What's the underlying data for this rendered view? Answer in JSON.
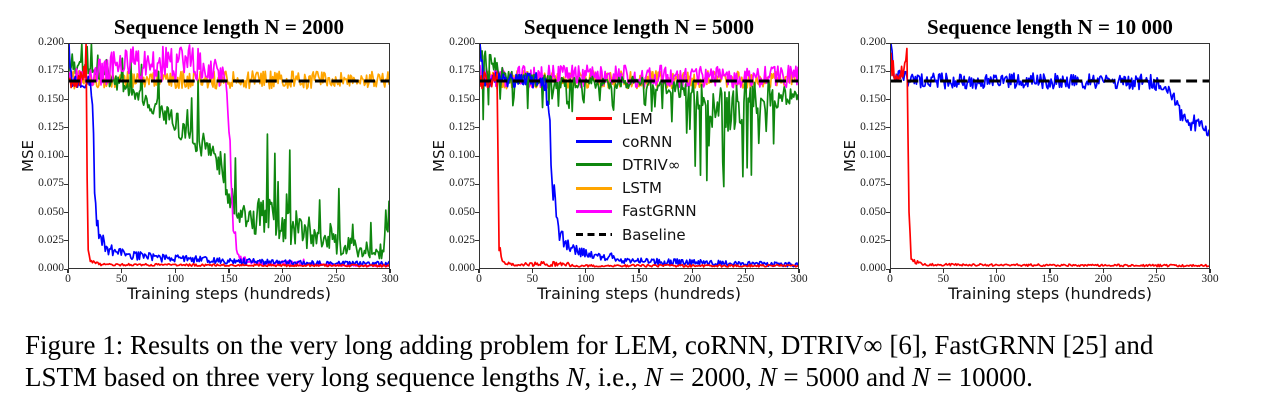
{
  "figure": {
    "caption": {
      "line1": "Figure 1: Results on the very long adding problem for LEM, coRNN, DTRIV∞ [6], FastGRNN [25] and",
      "line2_segments": [
        {
          "t": "LSTM based on three very long sequence lengths ",
          "i": false
        },
        {
          "t": "N",
          "i": true
        },
        {
          "t": ", i.e., ",
          "i": false
        },
        {
          "t": "N",
          "i": true
        },
        {
          "t": " = 2000, ",
          "i": false
        },
        {
          "t": "N",
          "i": true
        },
        {
          "t": " = 5000 and ",
          "i": false
        },
        {
          "t": "N",
          "i": true
        },
        {
          "t": " = 10000.",
          "i": false
        }
      ]
    }
  },
  "chart_data": [
    {
      "type": "line",
      "title": "Sequence length N = 2000",
      "xlabel": "Training steps (hundreds)",
      "ylabel": "MSE",
      "xlim": [
        0,
        300
      ],
      "ylim": [
        0.0,
        0.2
      ],
      "xticks": [
        0,
        50,
        100,
        150,
        200,
        250,
        300
      ],
      "ytick_labels": [
        "0.000",
        "0.025",
        "0.050",
        "0.075",
        "0.100",
        "0.125",
        "0.150",
        "0.175",
        "0.200"
      ],
      "baseline": {
        "label": "Baseline",
        "value": 0.167,
        "color": "#000000"
      },
      "series": [
        {
          "name": "LSTM",
          "color": "#ffa500",
          "style": "noisy",
          "seed": 44,
          "trend": [
            [
              0,
              0.168,
              0.008
            ],
            [
              300,
              0.168,
              0.008
            ]
          ]
        },
        {
          "name": "DTRIV∞",
          "color": "#0f870f",
          "style": "spiky-up",
          "seed": 33,
          "trend": [
            [
              0,
              0.185,
              0.02
            ],
            [
              10,
              0.178,
              0.018
            ],
            [
              25,
              0.17,
              0.015
            ],
            [
              45,
              0.165,
              0.015
            ],
            [
              60,
              0.158,
              0.018
            ],
            [
              75,
              0.148,
              0.02
            ],
            [
              90,
              0.138,
              0.022
            ],
            [
              105,
              0.125,
              0.024
            ],
            [
              120,
              0.112,
              0.026
            ],
            [
              132,
              0.105,
              0.028
            ],
            [
              140,
              0.1,
              0.03
            ],
            [
              147,
              0.07,
              0.025
            ],
            [
              153,
              0.052,
              0.022
            ],
            [
              162,
              0.048,
              0.022
            ],
            [
              172,
              0.042,
              0.02
            ],
            [
              180,
              0.045,
              0.05
            ],
            [
              186,
              0.055,
              0.06
            ],
            [
              192,
              0.04,
              0.03
            ],
            [
              200,
              0.035,
              0.03
            ],
            [
              208,
              0.04,
              0.05
            ],
            [
              216,
              0.032,
              0.028
            ],
            [
              225,
              0.028,
              0.025
            ],
            [
              235,
              0.025,
              0.022
            ],
            [
              245,
              0.028,
              0.035
            ],
            [
              255,
              0.02,
              0.02
            ],
            [
              262,
              0.028,
              0.035
            ],
            [
              270,
              0.016,
              0.015
            ],
            [
              280,
              0.013,
              0.012
            ],
            [
              290,
              0.012,
              0.012
            ],
            [
              296,
              0.02,
              0.025
            ],
            [
              300,
              0.045,
              0.015
            ]
          ]
        },
        {
          "name": "FastGRNN",
          "color": "#ff00ff",
          "style": "noisy",
          "seed": 55,
          "trend": [
            [
              0,
              0.17,
              0.009
            ],
            [
              15,
              0.172,
              0.011
            ],
            [
              35,
              0.177,
              0.014
            ],
            [
              55,
              0.183,
              0.016
            ],
            [
              75,
              0.182,
              0.017
            ],
            [
              95,
              0.18,
              0.017
            ],
            [
              110,
              0.184,
              0.017
            ],
            [
              125,
              0.182,
              0.016
            ],
            [
              138,
              0.177,
              0.014
            ],
            [
              146,
              0.168,
              0.008
            ],
            [
              150,
              0.12,
              0.02
            ],
            [
              153,
              0.05,
              0.012
            ],
            [
              157,
              0.018,
              0.005
            ],
            [
              162,
              0.008,
              0.003
            ],
            [
              175,
              0.004,
              0.002
            ],
            [
              220,
              0.005,
              0.003
            ],
            [
              228,
              0.003,
              0.001
            ],
            [
              300,
              0.002,
              0.001
            ]
          ]
        },
        {
          "name": "coRNN",
          "color": "#0000ff",
          "style": "noisy",
          "seed": 22,
          "trend": [
            [
              0,
              0.2,
              0
            ],
            [
              1,
              0.185,
              0.01
            ],
            [
              3,
              0.168,
              0.006
            ],
            [
              20,
              0.166,
              0.006
            ],
            [
              22,
              0.155,
              0.012
            ],
            [
              24,
              0.07,
              0.015
            ],
            [
              26,
              0.04,
              0.01
            ],
            [
              30,
              0.025,
              0.007
            ],
            [
              38,
              0.016,
              0.005
            ],
            [
              55,
              0.012,
              0.004
            ],
            [
              90,
              0.009,
              0.004
            ],
            [
              130,
              0.007,
              0.003
            ],
            [
              180,
              0.005,
              0.003
            ],
            [
              240,
              0.004,
              0.002
            ],
            [
              300,
              0.004,
              0.002
            ]
          ]
        },
        {
          "name": "LEM",
          "color": "#ff0000",
          "style": "noisy",
          "seed": 11,
          "trend": [
            [
              0,
              0.168,
              0.008
            ],
            [
              13,
              0.167,
              0.008
            ],
            [
              15,
              0.18,
              0.01
            ],
            [
              16,
              0.2,
              0
            ],
            [
              17,
              0.08,
              0
            ],
            [
              18,
              0.015,
              0.004
            ],
            [
              20,
              0.006,
              0.002
            ],
            [
              30,
              0.003,
              0.001
            ],
            [
              300,
              0.002,
              0.001
            ]
          ]
        }
      ]
    },
    {
      "type": "line",
      "title": "Sequence length N = 5000",
      "xlabel": "Training steps (hundreds)",
      "ylabel": "MSE",
      "xlim": [
        0,
        300
      ],
      "ylim": [
        0.0,
        0.2
      ],
      "xticks": [
        0,
        50,
        100,
        150,
        200,
        250,
        300
      ],
      "ytick_labels": [
        "0.000",
        "0.025",
        "0.050",
        "0.075",
        "0.100",
        "0.125",
        "0.150",
        "0.175",
        "0.200"
      ],
      "baseline": {
        "label": "Baseline",
        "value": 0.167,
        "color": "#000000"
      },
      "legend": {
        "position": "center",
        "entries": [
          {
            "label": "LEM",
            "color": "#ff0000",
            "dashed": false
          },
          {
            "label": "coRNN",
            "color": "#0000ff",
            "dashed": false
          },
          {
            "label": "DTRIV∞",
            "color": "#0f870f",
            "dashed": false
          },
          {
            "label": "LSTM",
            "color": "#ffa500",
            "dashed": false
          },
          {
            "label": "FastGRNN",
            "color": "#ff00ff",
            "dashed": false
          },
          {
            "label": "Baseline",
            "color": "#000000",
            "dashed": true
          }
        ]
      },
      "series": [
        {
          "name": "LSTM",
          "color": "#ffa500",
          "style": "noisy",
          "seed": 99,
          "trend": [
            [
              0,
              0.168,
              0.008
            ],
            [
              300,
              0.168,
              0.008
            ]
          ]
        },
        {
          "name": "FastGRNN",
          "color": "#ff00ff",
          "style": "noisy",
          "seed": 111,
          "trend": [
            [
              0,
              0.171,
              0.01
            ],
            [
              300,
              0.171,
              0.01
            ]
          ]
        },
        {
          "name": "DTRIV∞",
          "color": "#0f870f",
          "style": "spiky-down",
          "seed": 88,
          "trend": [
            [
              0,
              0.195,
              0.03
            ],
            [
              8,
              0.188,
              0.025
            ],
            [
              18,
              0.176,
              0.018
            ],
            [
              35,
              0.169,
              0.013
            ],
            [
              60,
              0.167,
              0.012
            ],
            [
              90,
              0.166,
              0.012
            ],
            [
              120,
              0.166,
              0.013
            ],
            [
              150,
              0.165,
              0.013
            ],
            [
              175,
              0.163,
              0.015
            ],
            [
              190,
              0.16,
              0.02
            ],
            [
              200,
              0.155,
              0.03
            ],
            [
              210,
              0.148,
              0.04
            ],
            [
              220,
              0.143,
              0.045
            ],
            [
              230,
              0.14,
              0.045
            ],
            [
              238,
              0.142,
              0.045
            ],
            [
              246,
              0.148,
              0.045
            ],
            [
              254,
              0.152,
              0.04
            ],
            [
              262,
              0.15,
              0.04
            ],
            [
              270,
              0.155,
              0.03
            ],
            [
              280,
              0.153,
              0.025
            ],
            [
              290,
              0.154,
              0.018
            ],
            [
              300,
              0.154,
              0.012
            ]
          ]
        },
        {
          "name": "coRNN",
          "color": "#0000ff",
          "style": "noisy",
          "seed": 77,
          "trend": [
            [
              0,
              0.2,
              0
            ],
            [
              1,
              0.185,
              0.008
            ],
            [
              4,
              0.169,
              0.007
            ],
            [
              45,
              0.168,
              0.007
            ],
            [
              58,
              0.166,
              0.008
            ],
            [
              62,
              0.158,
              0.012
            ],
            [
              65,
              0.145,
              0.015
            ],
            [
              67,
              0.11,
              0.02
            ],
            [
              69,
              0.07,
              0.02
            ],
            [
              72,
              0.04,
              0.012
            ],
            [
              76,
              0.028,
              0.009
            ],
            [
              82,
              0.02,
              0.007
            ],
            [
              92,
              0.015,
              0.005
            ],
            [
              105,
              0.011,
              0.004
            ],
            [
              120,
              0.009,
              0.004
            ],
            [
              123,
              0.016,
              0.004
            ],
            [
              126,
              0.008,
              0.003
            ],
            [
              145,
              0.006,
              0.003
            ],
            [
              190,
              0.005,
              0.003
            ],
            [
              250,
              0.004,
              0.002
            ],
            [
              300,
              0.003,
              0.002
            ]
          ]
        },
        {
          "name": "LEM",
          "color": "#ff0000",
          "style": "noisy",
          "seed": 66,
          "trend": [
            [
              0,
              0.168,
              0.008
            ],
            [
              14,
              0.166,
              0.008
            ],
            [
              16,
              0.175,
              0.006
            ],
            [
              17,
              0.1,
              0
            ],
            [
              18,
              0.02,
              0.005
            ],
            [
              21,
              0.006,
              0.002
            ],
            [
              30,
              0.003,
              0.001
            ],
            [
              82,
              0.004,
              0.003
            ],
            [
              86,
              0.002,
              0.001
            ],
            [
              300,
              0.002,
              0.001
            ]
          ]
        }
      ]
    },
    {
      "type": "line",
      "title": "Sequence length N = 10 000",
      "xlabel": "Training steps (hundreds)",
      "ylabel": "MSE",
      "xlim": [
        0,
        300
      ],
      "ylim": [
        0.0,
        0.2
      ],
      "xticks": [
        0,
        50,
        100,
        150,
        200,
        250,
        300
      ],
      "ytick_labels": [
        "0.000",
        "0.025",
        "0.050",
        "0.075",
        "0.100",
        "0.125",
        "0.150",
        "0.175",
        "0.200"
      ],
      "baseline": {
        "label": "Baseline",
        "value": 0.167,
        "color": "#000000"
      },
      "series": [
        {
          "name": "coRNN",
          "color": "#0000ff",
          "style": "noisy",
          "seed": 134,
          "trend": [
            [
              0,
              0.2,
              0
            ],
            [
              1,
              0.19,
              0.006
            ],
            [
              3,
              0.17,
              0.007
            ],
            [
              40,
              0.167,
              0.007
            ],
            [
              120,
              0.167,
              0.007
            ],
            [
              200,
              0.167,
              0.007
            ],
            [
              245,
              0.166,
              0.007
            ],
            [
              258,
              0.164,
              0.006
            ],
            [
              264,
              0.158,
              0.006
            ],
            [
              268,
              0.15,
              0.007
            ],
            [
              272,
              0.141,
              0.009
            ],
            [
              276,
              0.134,
              0.01
            ],
            [
              281,
              0.129,
              0.009
            ],
            [
              286,
              0.131,
              0.008
            ],
            [
              291,
              0.125,
              0.007
            ],
            [
              295,
              0.127,
              0.007
            ],
            [
              298,
              0.119,
              0.004
            ],
            [
              300,
              0.123,
              0.003
            ]
          ]
        },
        {
          "name": "LEM",
          "color": "#ff0000",
          "style": "noisy",
          "seed": 123,
          "trend": [
            [
              0,
              0.183,
              0.015
            ],
            [
              3,
              0.172,
              0.012
            ],
            [
              6,
              0.178,
              0.013
            ],
            [
              9,
              0.168,
              0.01
            ],
            [
              12,
              0.175,
              0.012
            ],
            [
              14,
              0.188,
              0.008
            ],
            [
              15,
              0.196,
              0
            ],
            [
              16,
              0.12,
              0
            ],
            [
              17,
              0.05,
              0
            ],
            [
              19,
              0.01,
              0.003
            ],
            [
              23,
              0.005,
              0.002
            ],
            [
              35,
              0.003,
              0.001
            ],
            [
              300,
              0.002,
              0.001
            ]
          ]
        }
      ]
    }
  ]
}
